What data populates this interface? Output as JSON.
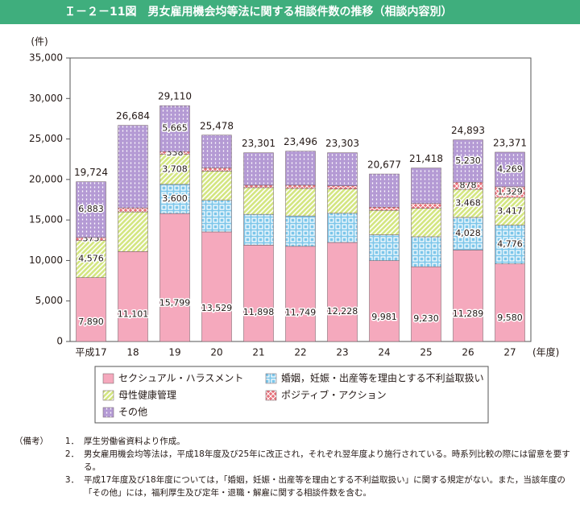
{
  "title": "Ｉ－２－11図　男女雇用機会均等法に関する相談件数の推移（相談内容別）",
  "chart_data": {
    "type": "stacked_bar",
    "y_unit": "(件)",
    "x_unit": "(年度)",
    "categories": [
      "平成17",
      "18",
      "19",
      "20",
      "21",
      "22",
      "23",
      "24",
      "25",
      "26",
      "27"
    ],
    "ylim": [
      0,
      35000
    ],
    "yticks": [
      0,
      {
        "value": 5000,
        "label": "5,000"
      },
      {
        "value": 10000,
        "label": "10,000"
      },
      {
        "value": 15000,
        "label": "15,000"
      },
      {
        "value": 20000,
        "label": "20,000"
      },
      {
        "value": 25000,
        "label": "25,000"
      },
      {
        "value": 30000,
        "label": "30,000"
      },
      {
        "value": 35000,
        "label": "35,000"
      }
    ],
    "series": [
      {
        "name": "セクシュアル・ハラスメント",
        "color": "#f5a9bd",
        "pattern": "solid",
        "values": [
          7890,
          11101,
          15799,
          13529,
          11898,
          11749,
          12228,
          9981,
          9230,
          11289,
          9580
        ],
        "value_labels": [
          "7,890",
          "11,101",
          "15,799",
          "13,529",
          "11,898",
          "11,749",
          "12,228",
          "9,981",
          "9,230",
          "11,289",
          "9,580"
        ]
      },
      {
        "name": "婚姻，妊娠・出産等を理由とする不利益取扱い",
        "color": "#7cc6ea",
        "pattern": "grid",
        "values": [
          null,
          null,
          3600,
          3900,
          3800,
          3750,
          3600,
          3200,
          3700,
          4028,
          4776
        ],
        "value_labels": [
          null,
          null,
          "3,600",
          null,
          null,
          null,
          null,
          null,
          null,
          "4,028",
          "4,776"
        ]
      },
      {
        "name": "母性健康管理",
        "color": "#d4e682",
        "pattern": "hatch",
        "values": [
          4576,
          4900,
          3708,
          3600,
          3300,
          3400,
          3000,
          3000,
          3500,
          3468,
          3417
        ],
        "value_labels": [
          "4,576",
          null,
          "3,708",
          null,
          null,
          null,
          null,
          null,
          null,
          "3,468",
          "3,417"
        ]
      },
      {
        "name": "ポジティブ・アクション",
        "color": "#e8707a",
        "pattern": "cross",
        "values": [
          375,
          500,
          338,
          400,
          300,
          400,
          400,
          400,
          600,
          878,
          1329
        ],
        "value_labels": [
          "375",
          null,
          "338",
          null,
          null,
          null,
          null,
          null,
          null,
          "878",
          "1,329"
        ]
      },
      {
        "name": "その他",
        "color": "#b49ad4",
        "pattern": "dots",
        "values": [
          6883,
          10183,
          5665,
          4049,
          4003,
          4197,
          4075,
          4096,
          4388,
          5230,
          4269
        ],
        "value_labels": [
          "6,883",
          null,
          "5,665",
          null,
          null,
          null,
          null,
          null,
          null,
          "5,230",
          "4,269"
        ]
      }
    ],
    "totals": {
      "values": [
        19724,
        26684,
        29110,
        25478,
        23301,
        23496,
        23303,
        20677,
        21418,
        24893,
        23371
      ],
      "value_labels": [
        "19,724",
        "26,684",
        "29,110",
        "25,478",
        "23,301",
        "23,496",
        "23,303",
        "20,677",
        "21,418",
        "24,893",
        "23,371"
      ]
    }
  },
  "notes": {
    "label": "（備考）",
    "items": [
      {
        "number": "1．",
        "text": "厚生労働省資料より作成。"
      },
      {
        "number": "2．",
        "text": "男女雇用機会均等法は，平成18年度及び25年に改正され，それぞれ翌年度より施行されている。時系列比較の際には留意を要する。"
      },
      {
        "number": "3．",
        "text": "平成17年度及び18年度については，「婚姻，妊娠・出産等を理由とする不利益取扱い」に関する規定がない。また，当該年度の「その他」には，福利厚生及び定年・退職・解雇に関する相談件数を含む。"
      }
    ]
  }
}
